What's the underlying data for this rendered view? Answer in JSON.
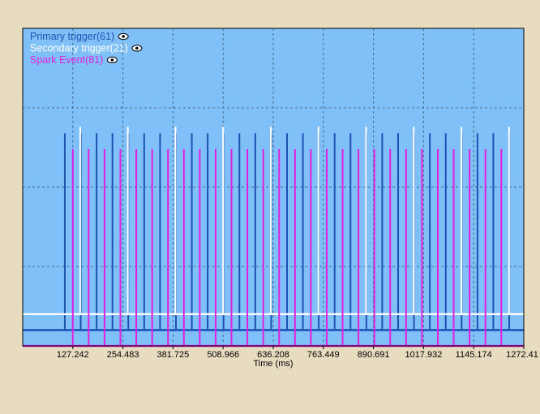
{
  "chart_data": {
    "type": "line",
    "xlabel": "Time (ms)",
    "ylabel": "",
    "xlim": [
      0,
      1272.41
    ],
    "x_ticks": [
      "127.242",
      "254.483",
      "381.725",
      "508.966",
      "636.208",
      "763.449",
      "890.691",
      "1017.932",
      "1145.174",
      "1272.41"
    ],
    "x_tick_values": [
      127.242,
      254.483,
      381.725,
      508.966,
      636.208,
      763.449,
      890.691,
      1017.932,
      1145.174,
      1272.41
    ],
    "grid": true,
    "legend_position": "top-left",
    "series": [
      {
        "name": "Primary trigger(61)",
        "color": "#1e50b4",
        "baseline": 0.05,
        "pulse_top": 0.67,
        "start": 107.0,
        "period": 40.3,
        "count": 29
      },
      {
        "name": "Secondary trigger(21)",
        "color": "#ffffff",
        "baseline": 0.1,
        "pulse_top": 0.69,
        "start": 146.0,
        "period": 121.0,
        "count": 10
      },
      {
        "name": "Spark Event(81)",
        "color": "#e020e0",
        "baseline": 0.0,
        "pulse_top": 0.62,
        "start": 127.2,
        "period": 40.3,
        "count": 28
      }
    ],
    "legend_icon": "eye-icon"
  },
  "colors": {
    "background": "#e8dcc0",
    "plot_background": "#80c0f8",
    "grid": "#4a6a8a",
    "axis": "#000000"
  }
}
